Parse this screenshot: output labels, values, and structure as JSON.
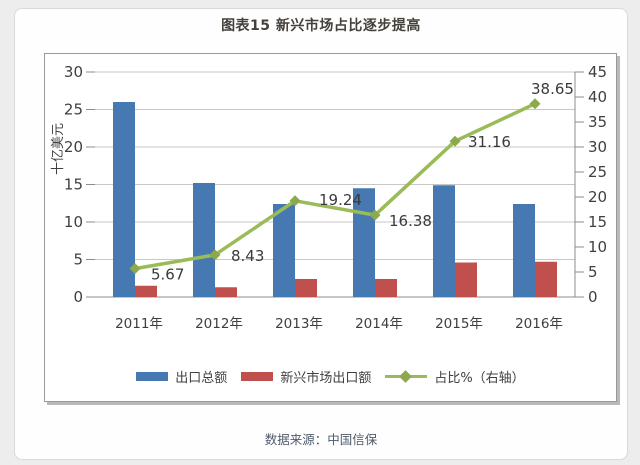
{
  "page": {
    "title": "图表15  新兴市场占比逐步提高",
    "source": "数据来源：中国信保"
  },
  "chart_data": {
    "type": "bar",
    "subtype": "bar-line-combo",
    "title": "图表15  新兴市场占比逐步提高",
    "categories": [
      "2011年",
      "2012年",
      "2013年",
      "2014年",
      "2015年",
      "2016年"
    ],
    "series": [
      {
        "name": "出口总额",
        "type": "bar",
        "axis": "left",
        "color": "#4679b2",
        "values": [
          26,
          15.2,
          12.4,
          14.5,
          14.9,
          12.4
        ]
      },
      {
        "name": "新兴市场出口额",
        "type": "bar",
        "axis": "left",
        "color": "#c0504d",
        "values": [
          1.5,
          1.3,
          2.4,
          2.4,
          4.6,
          4.7
        ]
      },
      {
        "name": "占比%（右轴）",
        "type": "line",
        "axis": "right",
        "color": "#9bbb59",
        "marker_color": "#8ea84e",
        "values": [
          5.67,
          8.43,
          19.24,
          16.38,
          31.16,
          38.65
        ],
        "labels": [
          "5.67",
          "8.43",
          "19.24",
          "16.38",
          "31.16",
          "38.65"
        ]
      }
    ],
    "left_axis": {
      "title": "十亿美元",
      "min": 0,
      "max": 30,
      "step": 5
    },
    "right_axis": {
      "title": "",
      "min": 0,
      "max": 45,
      "step": 5
    },
    "grid": true,
    "legend_position": "bottom",
    "colors": {
      "grid": "#c7c7c7",
      "axis": "#8c8c8c",
      "tick_text": "#3f3f3f",
      "data_label": "#3a3a3a"
    }
  }
}
